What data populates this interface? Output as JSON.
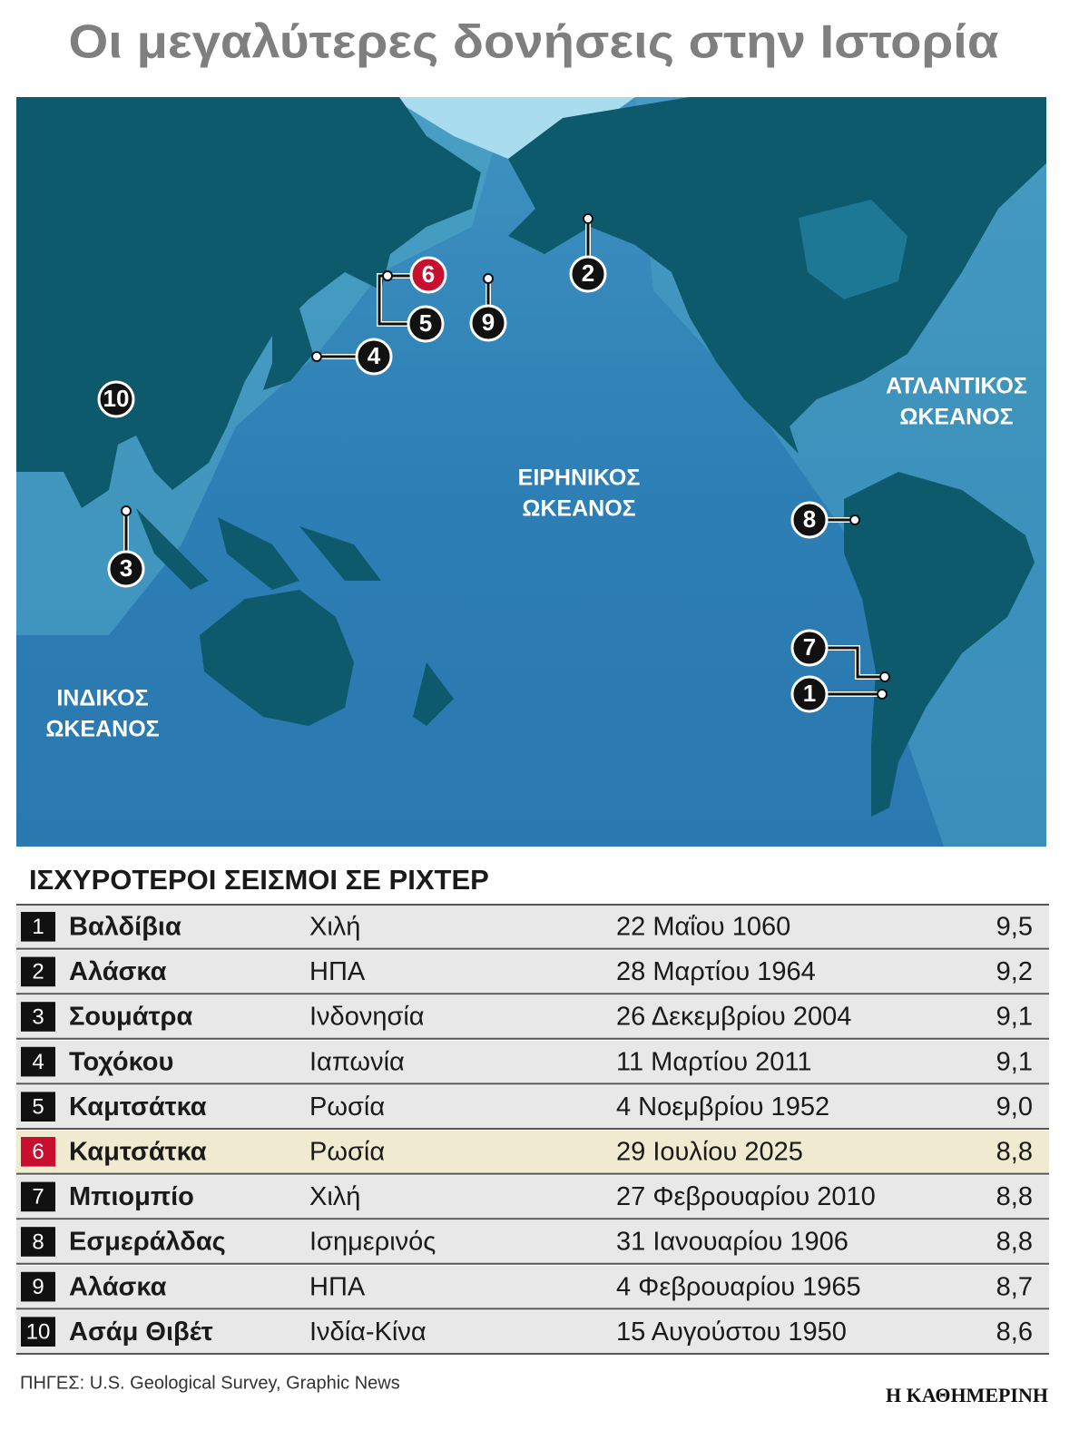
{
  "title": "Οι μεγαλύτερες δονήσεις στην Ιστορία",
  "map": {
    "oceans": [
      [
        "ΑΤΛΑΝΤΙΚΟΣ",
        "ΩΚΕΑΝΟΣ"
      ],
      [
        "ΕΙΡΗΝΙΚΟΣ",
        "ΩΚΕΑΝΟΣ"
      ],
      [
        "ΙΝΔΙΚΟΣ",
        "ΩΚΕΑΝΟΣ"
      ]
    ],
    "markers": [
      "1",
      "2",
      "3",
      "4",
      "5",
      "6",
      "7",
      "8",
      "9",
      "10"
    ]
  },
  "table": {
    "heading": "ΙΣΧΥΡΟΤΕΡΟΙ ΣΕΙΣΜΟΙ ΣΕ ΡΙΧΤΕΡ",
    "rows": [
      [
        "1",
        "Βαλδίβια",
        "Χιλή",
        "22 Μαΐου 1060",
        "9,5"
      ],
      [
        "2",
        "Αλάσκα",
        "ΗΠΑ",
        "28 Μαρτίου 1964",
        "9,2"
      ],
      [
        "3",
        "Σουμάτρα",
        "Ινδονησία",
        "26 Δεκεμβρίου 2004",
        "9,1"
      ],
      [
        "4",
        "Τοχόκου",
        "Ιαπωνία",
        "11 Μαρτίου 2011",
        "9,1"
      ],
      [
        "5",
        "Καμτσάτκα",
        "Ρωσία",
        "4 Νοεμβρίου 1952",
        "9,0"
      ],
      [
        "6",
        "Καμτσάτκα",
        "Ρωσία",
        "29 Ιουλίου 2025",
        "8,8"
      ],
      [
        "7",
        "Μπιομπίο",
        "Χιλή",
        "27 Φεβρουαρίου 2010",
        "8,8"
      ],
      [
        "8",
        "Εσμεράλδας",
        "Ισημερινός",
        "31 Ιανουαρίου 1906",
        "8,8"
      ],
      [
        "9",
        "Αλάσκα",
        "ΗΠΑ",
        "4 Φεβρουαρίου 1965",
        "8,7"
      ],
      [
        "10",
        "Ασάμ Θιβέτ",
        "Ινδία-Κίνα",
        "15 Αυγούστου 1950",
        "8,6"
      ]
    ]
  },
  "source": "ΠΗΓΕΣ: U.S. Geological Survey, Graphic News",
  "brand": "Η ΚΑΘΗΜΕΡΙΝΗ"
}
